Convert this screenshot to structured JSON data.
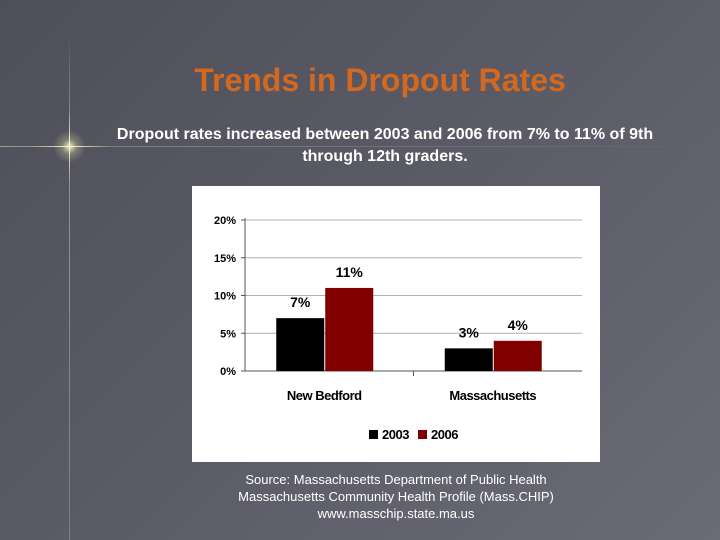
{
  "slide": {
    "title": "Trends in Dropout Rates",
    "subtitle": "Dropout rates increased between 2003 and 2006 from 7% to 11% of 9th through 12th graders."
  },
  "source": {
    "line1": "Source:  Massachusetts Department of Public Health",
    "line2": "Massachusetts Community Health Profile (Mass.CHIP)",
    "line3": "www.masschip.state.ma.us"
  },
  "colors": {
    "title": "#d2691e",
    "series_2003": "#000000",
    "series_2006": "#800000"
  },
  "chart_data": {
    "type": "bar",
    "categories": [
      "New Bedford",
      "Massachusetts"
    ],
    "series": [
      {
        "name": "2003",
        "values": [
          7,
          3
        ],
        "labels": [
          "7%",
          "3%"
        ]
      },
      {
        "name": "2006",
        "values": [
          11,
          4
        ],
        "labels": [
          "11%",
          "4%"
        ]
      }
    ],
    "yticks": [
      0,
      5,
      10,
      15,
      20
    ],
    "ytick_labels": [
      "0%",
      "5%",
      "10%",
      "15%",
      "20%"
    ],
    "ylim": [
      0,
      20
    ],
    "grid": true,
    "legend": "bottom",
    "title": "",
    "xlabel": "",
    "ylabel": ""
  }
}
